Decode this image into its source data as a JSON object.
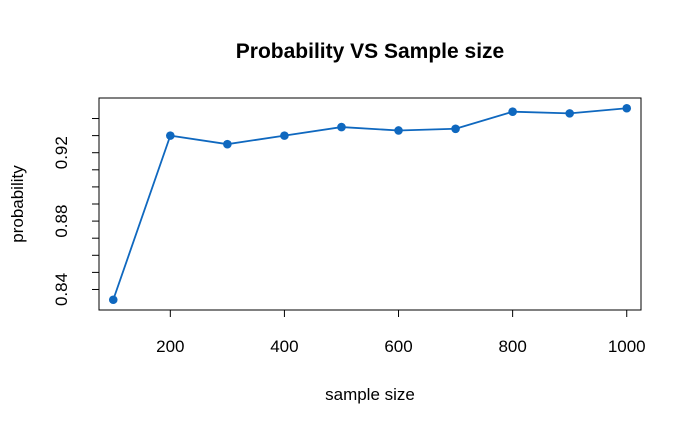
{
  "chart_data": {
    "type": "line",
    "title": "Probability VS Sample size",
    "xlabel": "sample size",
    "ylabel": "probability",
    "x": [
      100,
      200,
      300,
      400,
      500,
      600,
      700,
      800,
      900,
      1000
    ],
    "series": [
      {
        "values": [
          0.834,
          0.93,
          0.925,
          0.93,
          0.935,
          0.933,
          0.934,
          0.944,
          0.943,
          0.946
        ],
        "color": "#0F68BF"
      }
    ],
    "xlim": [
      75,
      1025
    ],
    "ylim": [
      0.828,
      0.952
    ],
    "xticks": [
      {
        "value": 200,
        "label": "200"
      },
      {
        "value": 400,
        "label": "400"
      },
      {
        "value": 600,
        "label": "600"
      },
      {
        "value": 800,
        "label": "800"
      },
      {
        "value": 1000,
        "label": "1000"
      }
    ],
    "yticks": [
      {
        "value": 0.84,
        "label": "0.84"
      },
      {
        "value": 0.88,
        "label": "0.88"
      },
      {
        "value": 0.92,
        "label": "0.92"
      }
    ],
    "yminor": [
      0.85,
      0.86,
      0.87,
      0.89,
      0.9,
      0.91,
      0.93,
      0.94
    ],
    "grid": false,
    "marker": "filled-circle"
  }
}
